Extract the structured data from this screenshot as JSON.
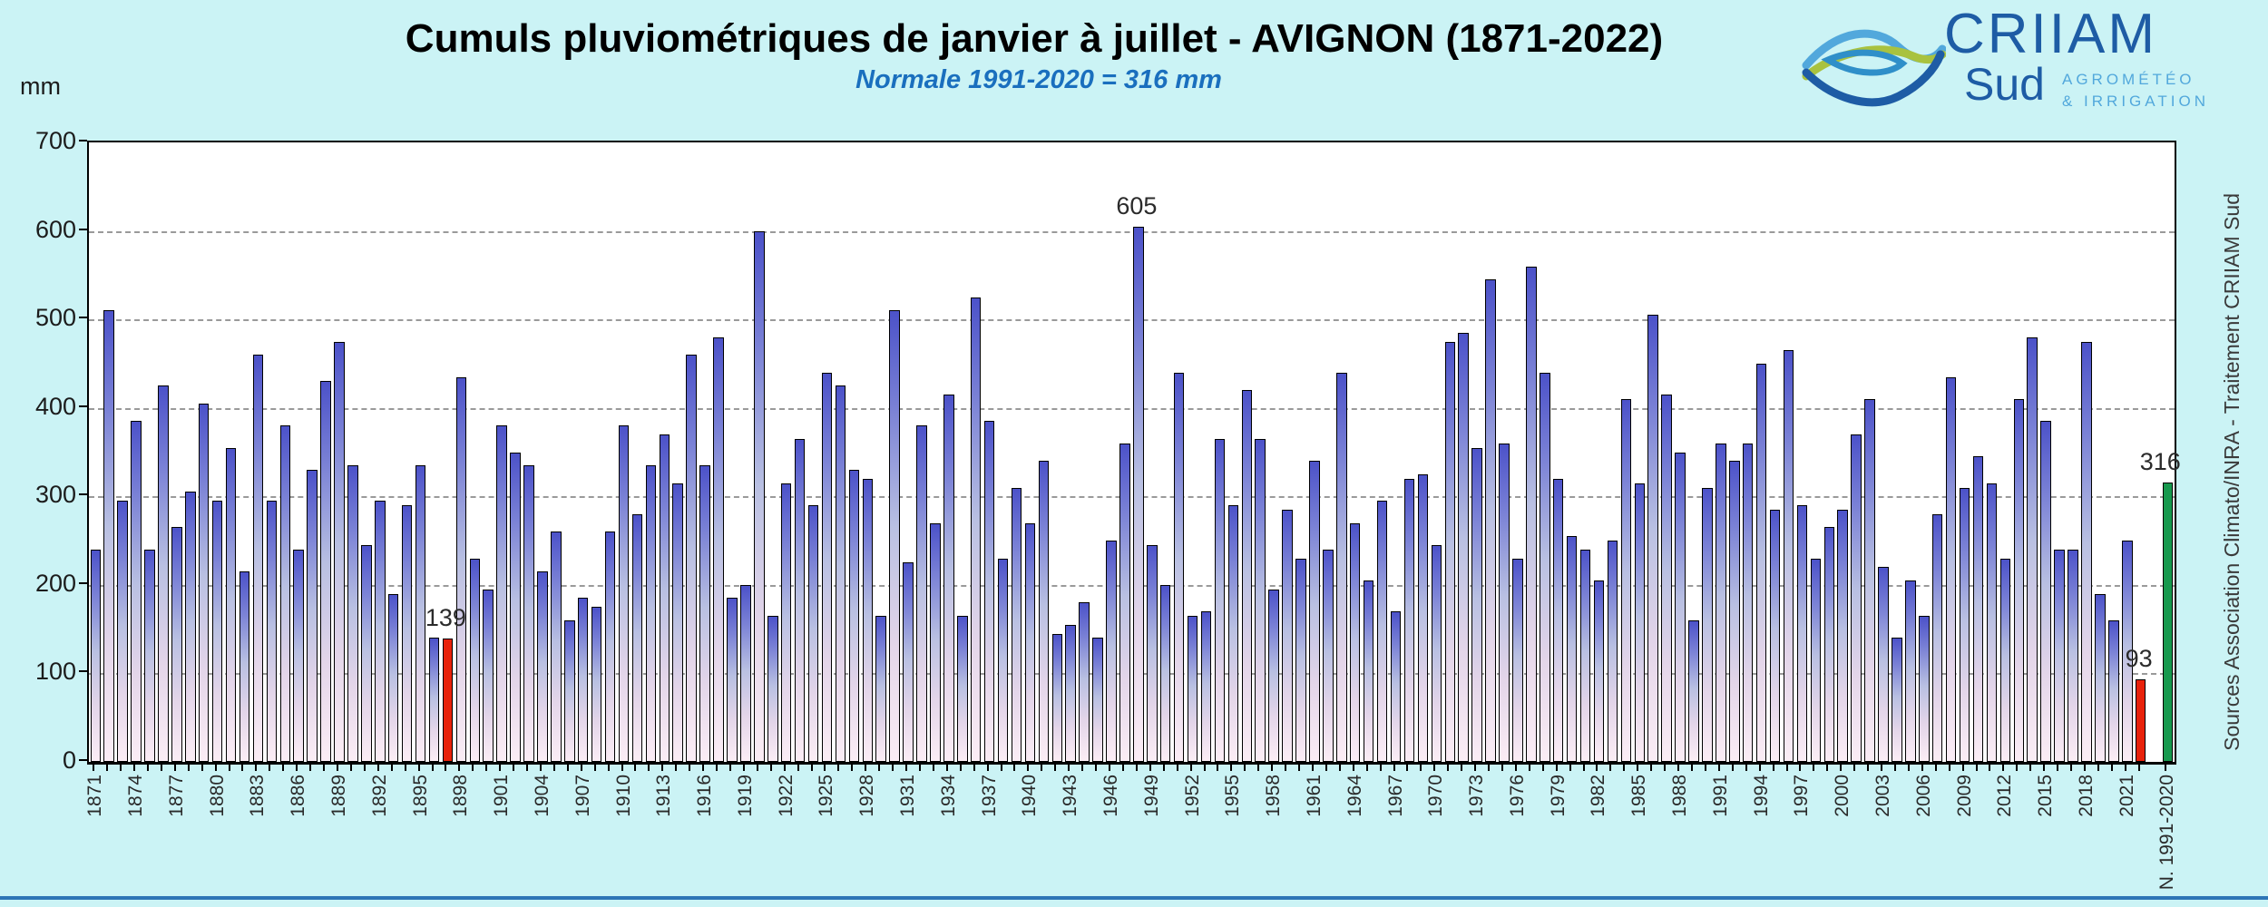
{
  "colors": {
    "background": "#cbf3f5",
    "subtitle_blue": "#1a6fbe",
    "grid": "#9a9a9a",
    "bar_gradient_top": "#4C52C9",
    "bar_gradient_mid1": "#7B82D6",
    "bar_gradient_mid2": "#B9C0E2",
    "bar_gradient_mid3": "#E3D5E9",
    "bar_gradient_bottom": "#FBEDF5",
    "bar_outline": "#000000",
    "red_bar": "#E8220B",
    "green_bar": "#17994E",
    "logo_dark_blue": "#1e5ca5",
    "logo_light_blue": "#52a8dc",
    "logo_green": "#a9c23f",
    "bottom_line_blue": "#2e75b6"
  },
  "logo": {
    "name": "CRIIAM",
    "sub": "Sud",
    "tagline1": "AGROMÉTÉO",
    "tagline2": "& IRRIGATION"
  },
  "source_text": "Sources Association Climato/INRA - Traitement CRIIAM Sud",
  "chart_data": {
    "type": "bar",
    "title": "Cumuls pluviométriques de janvier à juillet - AVIGNON (1871-2022)",
    "subtitle": "Normale 1991-2020 = 316 mm",
    "unit": "mm",
    "ylim": [
      0,
      700
    ],
    "ytick_step": 100,
    "grid": "dashed horizontal",
    "start_year": 1871,
    "end_year": 2022,
    "x_label_step": 3,
    "values": [
      240,
      510,
      295,
      385,
      240,
      425,
      265,
      305,
      405,
      295,
      355,
      215,
      460,
      295,
      380,
      240,
      330,
      430,
      475,
      335,
      245,
      295,
      190,
      290,
      335,
      140,
      139,
      435,
      230,
      195,
      380,
      350,
      335,
      215,
      260,
      160,
      185,
      175,
      260,
      380,
      280,
      335,
      370,
      315,
      460,
      335,
      480,
      185,
      200,
      600,
      165,
      315,
      365,
      290,
      440,
      425,
      330,
      320,
      165,
      510,
      225,
      380,
      270,
      415,
      165,
      525,
      385,
      230,
      310,
      270,
      340,
      145,
      155,
      180,
      140,
      250,
      360,
      605,
      245,
      200,
      440,
      165,
      170,
      365,
      290,
      420,
      365,
      195,
      285,
      230,
      340,
      240,
      440,
      270,
      205,
      295,
      170,
      320,
      325,
      245,
      475,
      485,
      355,
      545,
      360,
      230,
      560,
      440,
      320,
      255,
      240,
      205,
      250,
      410,
      315,
      505,
      415,
      350,
      160,
      310,
      360,
      340,
      360,
      450,
      285,
      465,
      290,
      230,
      265,
      285,
      370,
      410,
      220,
      140,
      205,
      165,
      280,
      435,
      310,
      345,
      315,
      230,
      410,
      480,
      385,
      240,
      240,
      475,
      190,
      160,
      250,
      93
    ],
    "red_years": [
      1897,
      2022
    ],
    "annotations": [
      {
        "year": 1897,
        "text": "139"
      },
      {
        "year": 1948,
        "text": "605"
      },
      {
        "year": 2022,
        "text": "93"
      }
    ],
    "normale_bar": {
      "label": "N. 1991-2020",
      "value": 316,
      "annotation": "316",
      "color_role": "green"
    }
  }
}
